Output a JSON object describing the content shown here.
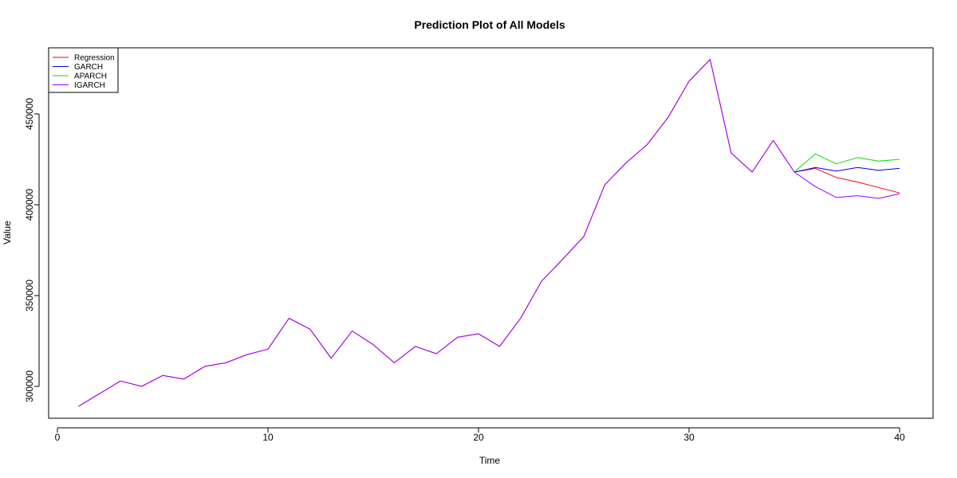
{
  "chart_data": {
    "type": "line",
    "title": "Prediction Plot of All Models",
    "xlabel": "Time",
    "ylabel": "Value",
    "xlim": [
      0,
      40
    ],
    "ylim": [
      285000,
      480000
    ],
    "x_ticks": [
      0,
      10,
      20,
      30,
      40
    ],
    "y_ticks": [
      300000,
      350000,
      400000,
      450000
    ],
    "legend_position": "top-left",
    "grid": false,
    "series": [
      {
        "name": "Regression",
        "color": "#ff0000",
        "x": [
          1,
          2,
          3,
          4,
          5,
          6,
          7,
          8,
          9,
          10,
          11,
          12,
          13,
          14,
          15,
          16,
          17,
          18,
          19,
          20,
          21,
          22,
          23,
          24,
          25,
          26,
          27,
          28,
          29,
          30,
          31,
          32,
          33,
          34,
          35,
          36,
          37,
          38,
          39,
          40
        ],
        "values": [
          289000,
          296000,
          303000,
          300000,
          306000,
          304000,
          311000,
          313000,
          317500,
          320500,
          337500,
          331500,
          315500,
          330500,
          323000,
          313000,
          322000,
          318000,
          327000,
          329000,
          322000,
          337500,
          358000,
          370000,
          382500,
          411000,
          423000,
          433000,
          448000,
          468000,
          480000,
          428500,
          418000,
          435500,
          418000,
          420000,
          415000,
          412500,
          409500,
          406500
        ]
      },
      {
        "name": "GARCH",
        "color": "#0000ff",
        "x": [
          35,
          36,
          37,
          38,
          39,
          40
        ],
        "values": [
          418000,
          420500,
          418500,
          420500,
          419000,
          420000
        ]
      },
      {
        "name": "APARCH",
        "color": "#00dd00",
        "x": [
          35,
          36,
          37,
          38,
          39,
          40
        ],
        "values": [
          418000,
          428000,
          422500,
          426000,
          424000,
          425000
        ]
      },
      {
        "name": "IGARCH",
        "color": "#9900ff",
        "x": [
          1,
          2,
          3,
          4,
          5,
          6,
          7,
          8,
          9,
          10,
          11,
          12,
          13,
          14,
          15,
          16,
          17,
          18,
          19,
          20,
          21,
          22,
          23,
          24,
          25,
          26,
          27,
          28,
          29,
          30,
          31,
          32,
          33,
          34,
          35,
          36,
          37,
          38,
          39,
          40
        ],
        "values": [
          289000,
          296000,
          303000,
          300000,
          306000,
          304000,
          311000,
          313000,
          317500,
          320500,
          337500,
          331500,
          315500,
          330500,
          323000,
          313000,
          322000,
          318000,
          327000,
          329000,
          322000,
          337500,
          358000,
          370000,
          382500,
          411000,
          423000,
          433000,
          448000,
          468000,
          480000,
          428500,
          418000,
          435500,
          418000,
          410000,
          404000,
          405000,
          403500,
          406000
        ]
      }
    ]
  }
}
